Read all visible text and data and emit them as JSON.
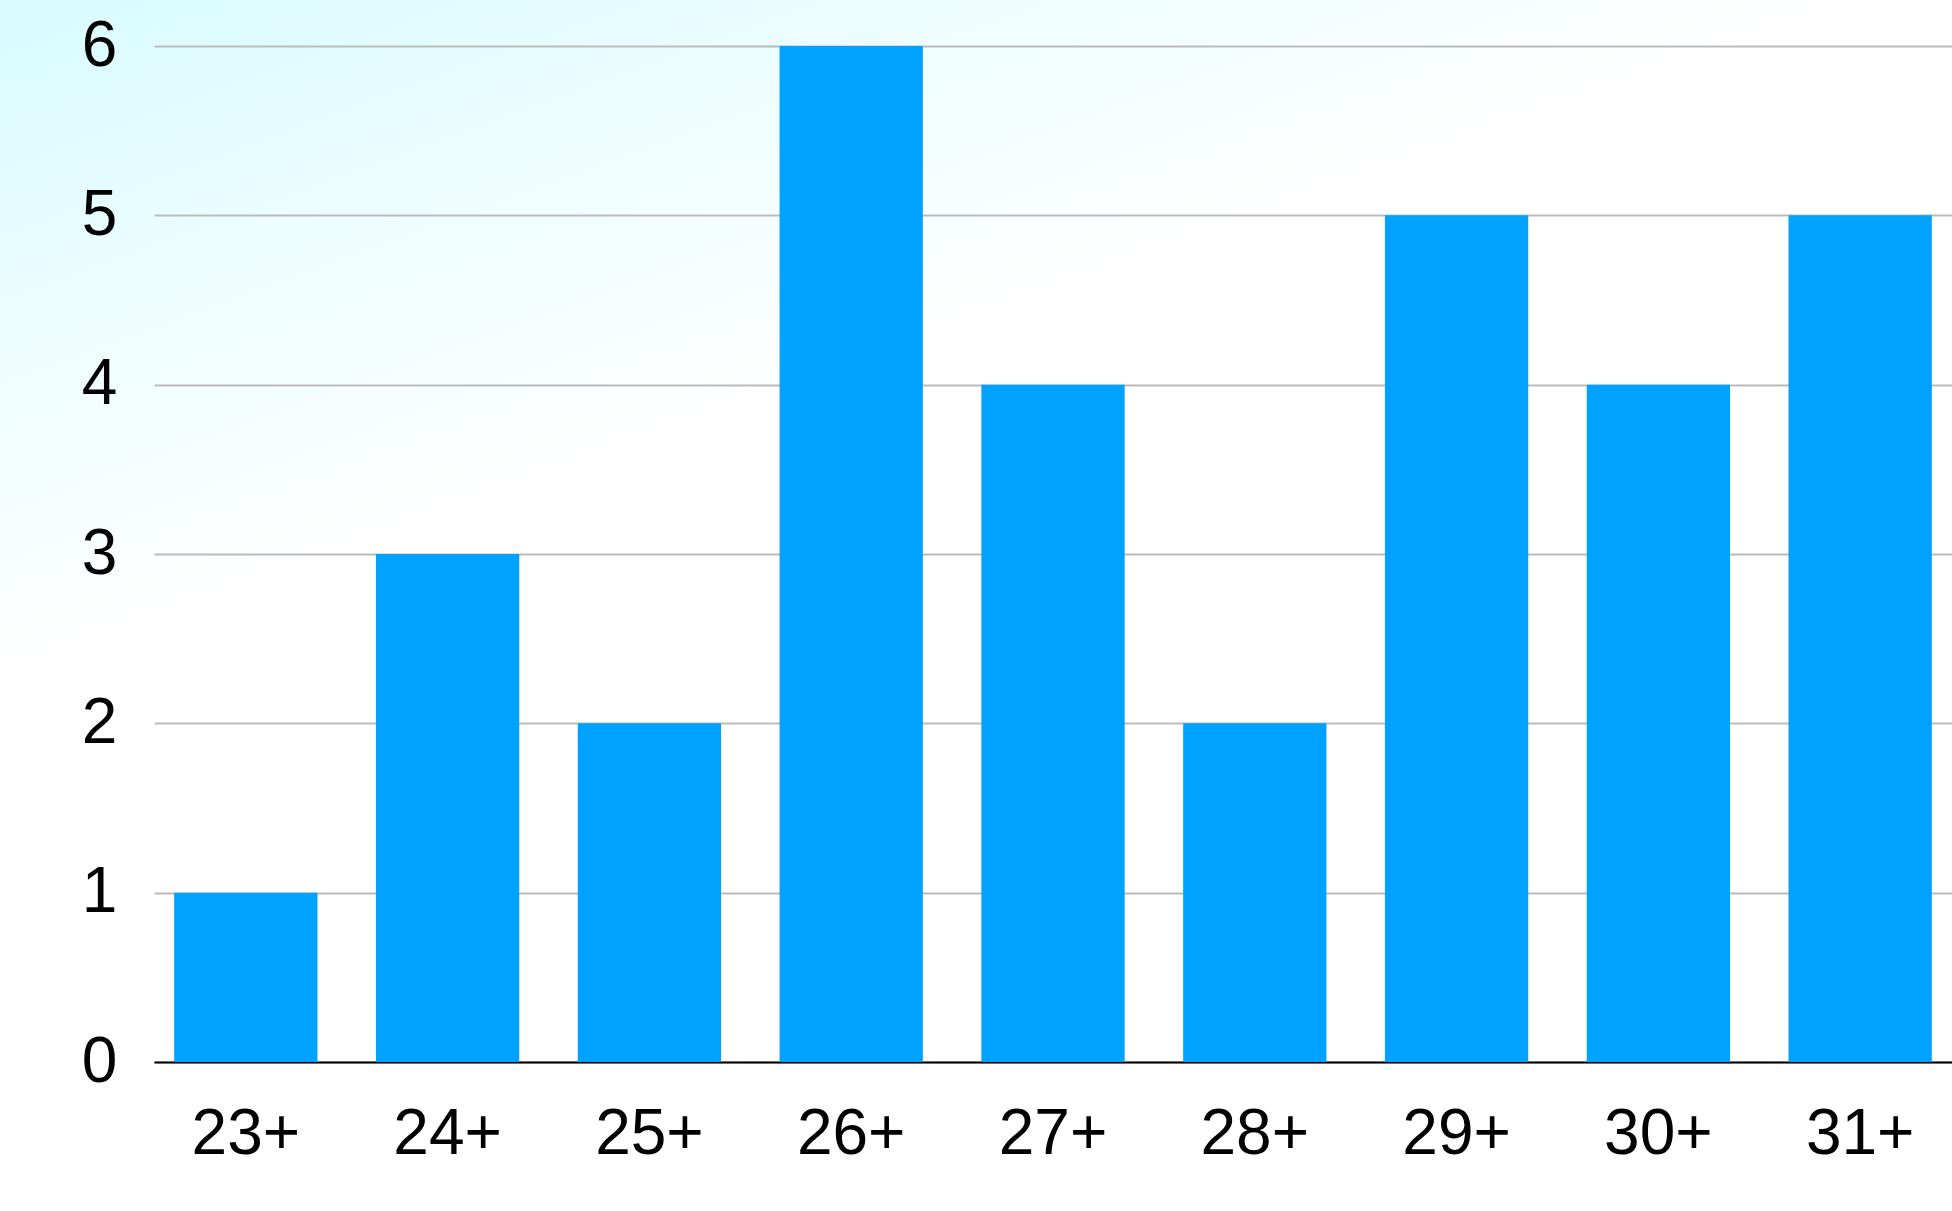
{
  "chart_data": {
    "type": "bar",
    "categories": [
      "23+",
      "24+",
      "25+",
      "26+",
      "27+",
      "28+",
      "29+",
      "30+",
      "31+"
    ],
    "values": [
      1,
      3,
      2,
      6,
      4,
      2,
      5,
      4,
      5
    ],
    "color": "#00a2ff",
    "ylim": [
      0,
      6
    ],
    "yticks": [
      0,
      1,
      2,
      3,
      4,
      5,
      6
    ],
    "grid": "y"
  }
}
